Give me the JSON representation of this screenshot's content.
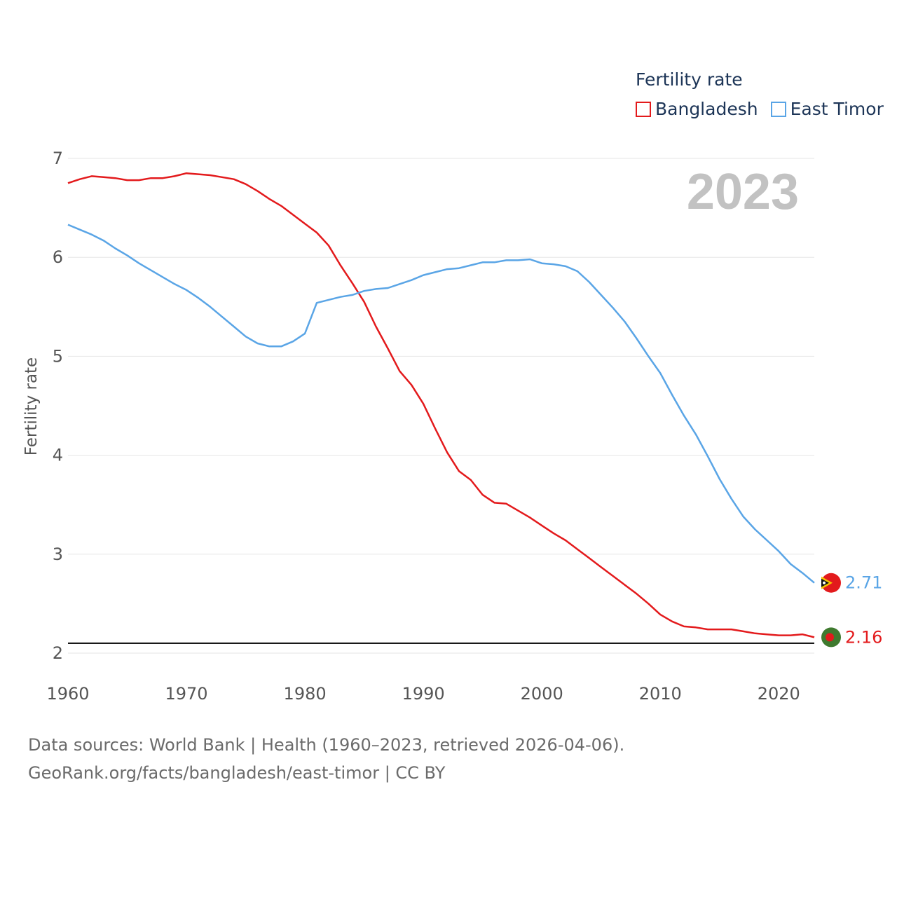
{
  "legend": {
    "title": "Fertility rate",
    "items": [
      {
        "label": "Bangladesh",
        "color": "#e31a1c"
      },
      {
        "label": "East Timor",
        "color": "#5aa5e6"
      }
    ]
  },
  "footer": {
    "line1": "Data sources: World Bank | Health (1960–2023, retrieved 2026-04-06).",
    "line2": "GeoRank.org/facts/bangladesh/east-timor | CC BY"
  },
  "chart_data": {
    "type": "line",
    "title": "Fertility rate",
    "year_label": "2023",
    "ylabel": "Fertility rate",
    "xlabel": "",
    "xlim": [
      1960,
      2023
    ],
    "ylim": [
      2,
      7
    ],
    "xticks": [
      1960,
      1970,
      1980,
      1990,
      2000,
      2010,
      2020
    ],
    "yticks": [
      2,
      3,
      4,
      5,
      6,
      7
    ],
    "grid": true,
    "reference_line": 2.1,
    "x": [
      1960,
      1961,
      1962,
      1963,
      1964,
      1965,
      1966,
      1967,
      1968,
      1969,
      1970,
      1971,
      1972,
      1973,
      1974,
      1975,
      1976,
      1977,
      1978,
      1979,
      1980,
      1981,
      1982,
      1983,
      1984,
      1985,
      1986,
      1987,
      1988,
      1989,
      1990,
      1991,
      1992,
      1993,
      1994,
      1995,
      1996,
      1997,
      1998,
      1999,
      2000,
      2001,
      2002,
      2003,
      2004,
      2005,
      2006,
      2007,
      2008,
      2009,
      2010,
      2011,
      2012,
      2013,
      2014,
      2015,
      2016,
      2017,
      2018,
      2019,
      2020,
      2021,
      2022,
      2023
    ],
    "series": [
      {
        "name": "Bangladesh",
        "color": "#e31a1c",
        "end_label": "2.16",
        "values": [
          6.75,
          6.79,
          6.82,
          6.81,
          6.8,
          6.78,
          6.78,
          6.8,
          6.8,
          6.82,
          6.85,
          6.84,
          6.83,
          6.81,
          6.79,
          6.74,
          6.67,
          6.59,
          6.52,
          6.43,
          6.34,
          6.25,
          6.12,
          5.92,
          5.74,
          5.55,
          5.3,
          5.08,
          4.85,
          4.71,
          4.52,
          4.27,
          4.03,
          3.84,
          3.75,
          3.6,
          3.52,
          3.51,
          3.44,
          3.37,
          3.29,
          3.21,
          3.14,
          3.05,
          2.96,
          2.87,
          2.78,
          2.69,
          2.6,
          2.5,
          2.39,
          2.32,
          2.27,
          2.26,
          2.24,
          2.24,
          2.24,
          2.22,
          2.2,
          2.19,
          2.18,
          2.18,
          2.19,
          2.16
        ]
      },
      {
        "name": "East Timor",
        "color": "#5aa5e6",
        "end_label": "2.71",
        "values": [
          6.33,
          6.28,
          6.23,
          6.17,
          6.09,
          6.02,
          5.94,
          5.87,
          5.8,
          5.73,
          5.67,
          5.59,
          5.5,
          5.4,
          5.3,
          5.2,
          5.13,
          5.1,
          5.1,
          5.15,
          5.23,
          5.54,
          5.57,
          5.6,
          5.62,
          5.66,
          5.68,
          5.69,
          5.73,
          5.77,
          5.82,
          5.85,
          5.88,
          5.89,
          5.92,
          5.95,
          5.95,
          5.97,
          5.97,
          5.98,
          5.94,
          5.93,
          5.91,
          5.86,
          5.75,
          5.62,
          5.49,
          5.35,
          5.18,
          5.0,
          4.83,
          4.61,
          4.4,
          4.21,
          3.99,
          3.76,
          3.56,
          3.38,
          3.25,
          3.14,
          3.03,
          2.9,
          2.81,
          2.71
        ]
      }
    ]
  }
}
